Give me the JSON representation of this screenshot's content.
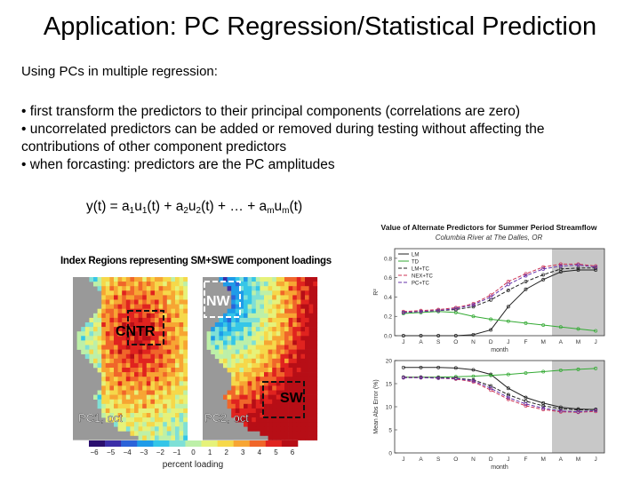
{
  "slide": {
    "title": "Application: PC Regression/Statistical Prediction",
    "intro": "Using PCs in multiple regression:",
    "bullets": [
      "• first transform the predictors to their principal components (correlations are zero)",
      "• uncorrelated predictors can be added or removed during testing without affecting the contributions of other component predictors",
      "• when forcasting: predictors are the PC amplitudes"
    ],
    "equation": {
      "lhs": "y(t) = a",
      "s1": "1",
      "m1": "u",
      "s2": "1",
      "m2": "(t) + a",
      "s3": "2",
      "m3": "u",
      "s4": "2",
      "m4": "(t) + … + a",
      "s5": "m",
      "m5": "u",
      "s6": "m",
      "rhs": "(t)"
    }
  },
  "map_figure": {
    "title": "Index Regions representing SM+SWE component loadings",
    "left_map": {
      "region_label": "CNTR",
      "pc_label": "PC1, oct"
    },
    "right_map": {
      "region_labels": [
        "NW",
        "SW"
      ],
      "pc_label": "PC2, oct"
    },
    "colorbar": {
      "ticks": [
        "−6",
        "−5",
        "−4",
        "−3",
        "−2",
        "−1",
        "0",
        "1",
        "2",
        "3",
        "4",
        "5",
        "6"
      ],
      "label": "percent loading",
      "colors": [
        "#2b0f6e",
        "#3b2ea8",
        "#2b63d9",
        "#1f9be8",
        "#35c6e8",
        "#7fe0d6",
        "#bdf0a8",
        "#e6f27a",
        "#f6d84a",
        "#f7a533",
        "#f0662a",
        "#e0231f",
        "#b70e16"
      ]
    }
  },
  "chart_data": [
    {
      "type": "line",
      "title": "Value of Alternate Predictors for Summer Period Streamflow",
      "subtitle": "Columbia River at The Dalles, OR",
      "xlabel": "month",
      "ylabel": "R²",
      "categories": [
        "J",
        "A",
        "S",
        "O",
        "N",
        "D",
        "J",
        "F",
        "M",
        "A",
        "M",
        "J"
      ],
      "ylim": [
        0,
        0.9
      ],
      "yticks": [
        "0.0",
        "0.2",
        "0.4",
        "0.6",
        "0.8"
      ],
      "shaded_from_index": 9,
      "series": [
        {
          "name": "LM",
          "color": "#222222",
          "dash": "none",
          "values": [
            0.0,
            0.0,
            0.0,
            0.0,
            0.01,
            0.06,
            0.3,
            0.48,
            0.58,
            0.66,
            0.68,
            0.68
          ]
        },
        {
          "name": "TD",
          "color": "#33aa33",
          "dash": "none",
          "values": [
            0.23,
            0.24,
            0.25,
            0.24,
            0.2,
            0.17,
            0.15,
            0.13,
            0.11,
            0.09,
            0.07,
            0.05
          ]
        },
        {
          "name": "LM+TC",
          "color": "#222222",
          "dash": "4,2",
          "values": [
            0.24,
            0.25,
            0.26,
            0.27,
            0.3,
            0.37,
            0.47,
            0.56,
            0.63,
            0.69,
            0.7,
            0.7
          ]
        },
        {
          "name": "NEX+TC",
          "color": "#cc3355",
          "dash": "4,2",
          "values": [
            0.25,
            0.26,
            0.27,
            0.29,
            0.33,
            0.42,
            0.56,
            0.64,
            0.71,
            0.74,
            0.74,
            0.72
          ]
        },
        {
          "name": "PC+TC",
          "color": "#6633aa",
          "dash": "4,2",
          "values": [
            0.24,
            0.25,
            0.26,
            0.28,
            0.32,
            0.4,
            0.53,
            0.62,
            0.69,
            0.72,
            0.73,
            0.71
          ]
        }
      ]
    },
    {
      "type": "line",
      "xlabel": "month",
      "ylabel": "Mean Abs Error (%)",
      "categories": [
        "J",
        "A",
        "S",
        "O",
        "N",
        "D",
        "J",
        "F",
        "M",
        "A",
        "M",
        "J"
      ],
      "ylim": [
        0,
        20
      ],
      "yticks": [
        "0",
        "5",
        "10",
        "15",
        "20"
      ],
      "shaded_from_index": 9,
      "series": [
        {
          "name": "LM",
          "color": "#222222",
          "dash": "none",
          "values": [
            18.5,
            18.5,
            18.5,
            18.4,
            18.0,
            17.0,
            14.0,
            12.0,
            10.8,
            9.9,
            9.5,
            9.4
          ]
        },
        {
          "name": "TD",
          "color": "#33aa33",
          "dash": "none",
          "values": [
            16.4,
            16.4,
            16.4,
            16.5,
            16.6,
            16.8,
            17.0,
            17.3,
            17.6,
            17.9,
            18.1,
            18.3
          ]
        },
        {
          "name": "LM+TC",
          "color": "#222222",
          "dash": "4,2",
          "values": [
            16.4,
            16.4,
            16.3,
            16.2,
            15.8,
            14.5,
            12.6,
            11.2,
            10.2,
            9.6,
            9.3,
            9.4
          ]
        },
        {
          "name": "NEX+TC",
          "color": "#cc3355",
          "dash": "4,2",
          "values": [
            16.3,
            16.3,
            16.2,
            16.0,
            15.4,
            13.6,
            11.6,
            10.2,
            9.4,
            8.9,
            8.8,
            9.0
          ]
        },
        {
          "name": "PC+TC",
          "color": "#6633aa",
          "dash": "4,2",
          "values": [
            16.3,
            16.3,
            16.2,
            16.1,
            15.6,
            14.0,
            12.0,
            10.6,
            9.7,
            9.1,
            8.9,
            9.2
          ]
        }
      ]
    }
  ]
}
